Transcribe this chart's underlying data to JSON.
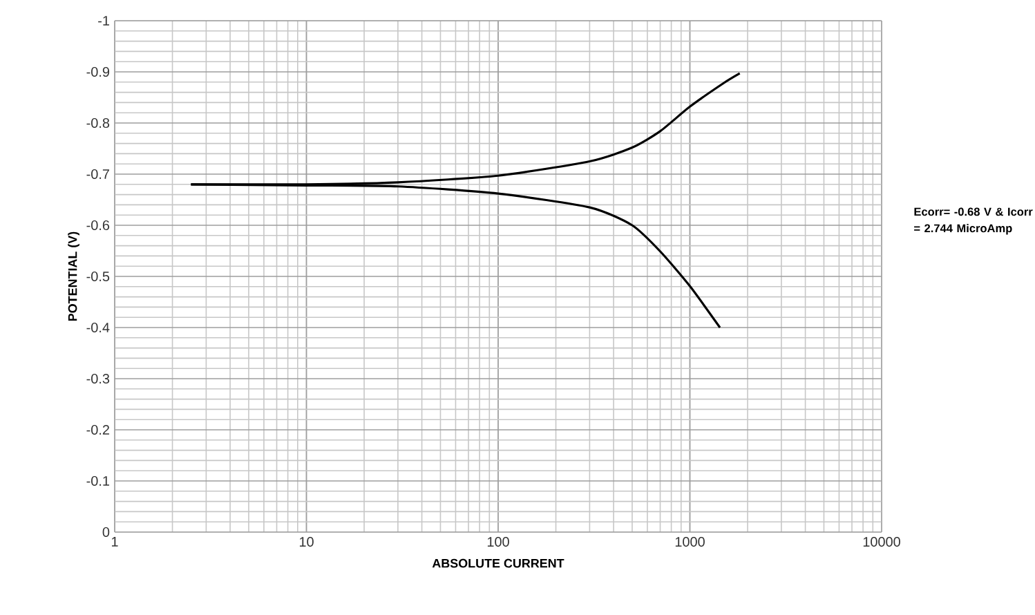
{
  "chart_data": {
    "type": "line",
    "xlabel": "ABSOLUTE CURRENT",
    "ylabel": "POTENTIAL (V)",
    "log": "x",
    "xlim": [
      1,
      10000
    ],
    "xticks": [
      1,
      10,
      100,
      1000,
      10000
    ],
    "ylim": [
      0,
      -1
    ],
    "yticks": [
      0,
      -0.1,
      -0.2,
      -0.3,
      -0.4,
      -0.5,
      -0.6,
      -0.7,
      -0.8,
      -0.9,
      -1
    ],
    "grid": true,
    "marker": "none",
    "line_style": "solid",
    "annotations": [
      "Ecorr= -0.68 V & Icorr = 2.744 MicroAmp"
    ],
    "series": [
      {
        "color": "#000000",
        "x": [
          2.5,
          10,
          30,
          100,
          300,
          500,
          700,
          1000,
          1500,
          1820
        ],
        "values": [
          -0.68,
          -0.68,
          -0.684,
          -0.697,
          -0.725,
          -0.752,
          -0.784,
          -0.832,
          -0.878,
          -0.897
        ]
      },
      {
        "color": "#000000",
        "x": [
          2.5,
          10,
          30,
          100,
          300,
          500,
          700,
          1000,
          1435
        ],
        "values": [
          -0.68,
          -0.678,
          -0.676,
          -0.662,
          -0.635,
          -0.6,
          -0.549,
          -0.481,
          -0.4
        ]
      }
    ]
  }
}
